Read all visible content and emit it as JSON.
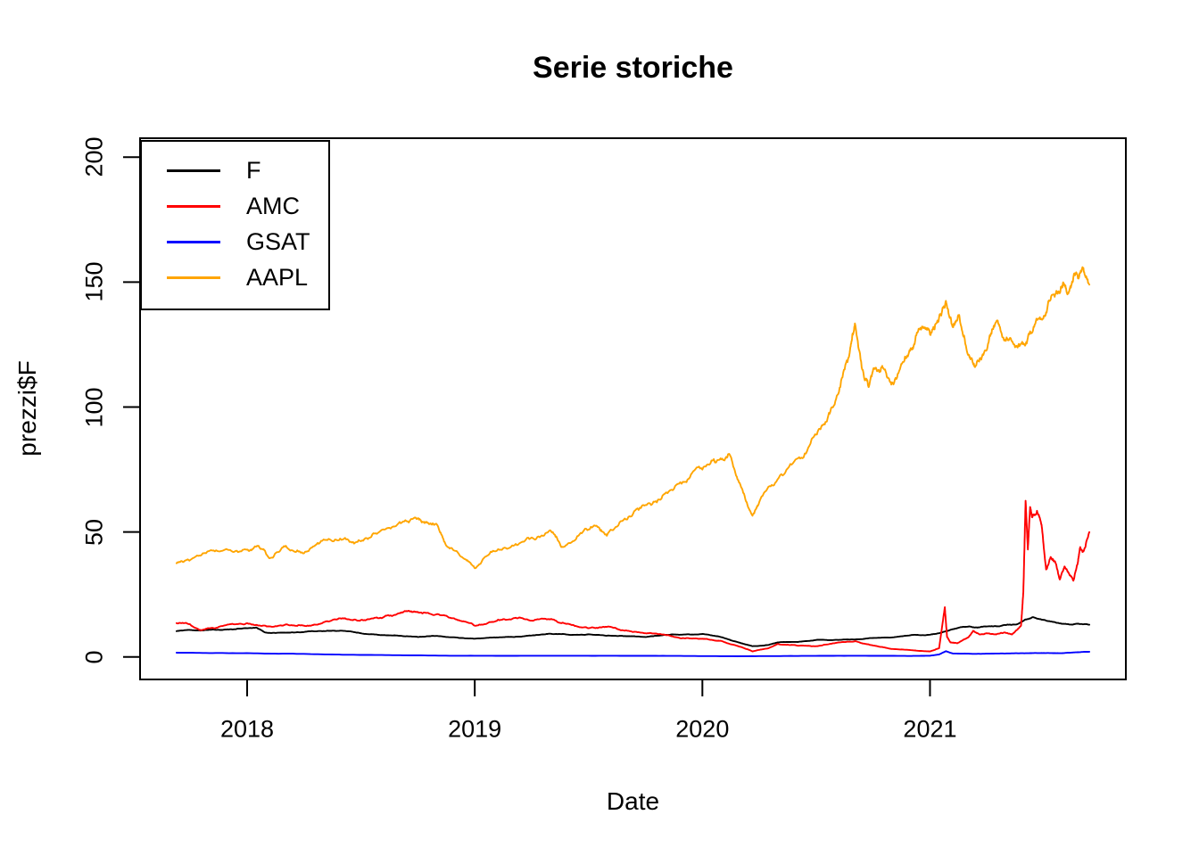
{
  "title": "Serie storiche",
  "x_axis": {
    "label": "Date",
    "tick_labels": [
      "2018",
      "2019",
      "2020",
      "2021"
    ],
    "ticks": [
      2018,
      2019,
      2020,
      2021
    ]
  },
  "y_axis": {
    "label": "prezzi$F",
    "tick_labels": [
      "0",
      "50",
      "100",
      "150",
      "200"
    ],
    "ticks": [
      0,
      50,
      100,
      150,
      200
    ]
  },
  "legend": {
    "position": "topleft",
    "entries": [
      {
        "label": "F",
        "color": "#000000"
      },
      {
        "label": "AMC",
        "color": "#FF0000"
      },
      {
        "label": "GSAT",
        "color": "#0000FF"
      },
      {
        "label": "AAPL",
        "color": "#FFA500"
      }
    ]
  },
  "chart_data": {
    "type": "line",
    "title": "Serie storiche",
    "xlabel": "Date",
    "ylabel": "prezzi$F",
    "x_unit": "decimal_year",
    "xlim": [
      2017.69,
      2021.7
    ],
    "ylim": [
      0,
      200
    ],
    "grid": false,
    "legend_position": "topleft",
    "series": [
      {
        "name": "F",
        "color": "#000000",
        "x": [
          2017.69,
          2017.75,
          2017.83,
          2017.92,
          2018.0,
          2018.04,
          2018.08,
          2018.17,
          2018.25,
          2018.33,
          2018.42,
          2018.5,
          2018.58,
          2018.67,
          2018.75,
          2018.83,
          2018.92,
          2019.0,
          2019.08,
          2019.17,
          2019.25,
          2019.33,
          2019.42,
          2019.5,
          2019.58,
          2019.67,
          2019.75,
          2019.83,
          2019.92,
          2020.0,
          2020.08,
          2020.17,
          2020.22,
          2020.29,
          2020.33,
          2020.42,
          2020.5,
          2020.58,
          2020.67,
          2020.75,
          2020.83,
          2020.92,
          2021.0,
          2021.04,
          2021.08,
          2021.13,
          2021.17,
          2021.21,
          2021.25,
          2021.29,
          2021.33,
          2021.38,
          2021.42,
          2021.45,
          2021.5,
          2021.54,
          2021.58,
          2021.63,
          2021.65,
          2021.7
        ],
        "y": [
          10.3,
          10.8,
          10.8,
          11.0,
          11.5,
          11.8,
          9.8,
          9.7,
          10.0,
          10.3,
          10.5,
          9.5,
          8.8,
          8.5,
          8.0,
          8.4,
          7.8,
          7.3,
          7.8,
          8.0,
          8.6,
          9.3,
          8.8,
          9.1,
          8.5,
          8.3,
          8.0,
          8.8,
          9.0,
          9.2,
          8.0,
          5.5,
          4.3,
          4.8,
          5.8,
          6.0,
          6.8,
          6.8,
          7.0,
          7.6,
          7.8,
          8.8,
          8.9,
          9.5,
          10.5,
          11.8,
          12.2,
          11.8,
          12.2,
          12.3,
          12.8,
          13.0,
          15.0,
          15.9,
          14.8,
          14.0,
          13.3,
          13.0,
          13.3,
          12.9
        ]
      },
      {
        "name": "AMC",
        "color": "#FF0000",
        "x": [
          2017.69,
          2017.75,
          2017.79,
          2017.83,
          2017.92,
          2018.0,
          2018.08,
          2018.17,
          2018.25,
          2018.33,
          2018.42,
          2018.5,
          2018.58,
          2018.67,
          2018.71,
          2018.75,
          2018.83,
          2018.92,
          2019.0,
          2019.08,
          2019.17,
          2019.25,
          2019.33,
          2019.42,
          2019.5,
          2019.58,
          2019.67,
          2019.75,
          2019.83,
          2019.92,
          2020.0,
          2020.08,
          2020.17,
          2020.22,
          2020.29,
          2020.33,
          2020.42,
          2020.5,
          2020.58,
          2020.67,
          2020.75,
          2020.83,
          2020.92,
          2021.0,
          2021.04,
          2021.065,
          2021.075,
          2021.09,
          2021.12,
          2021.17,
          2021.19,
          2021.22,
          2021.25,
          2021.29,
          2021.33,
          2021.36,
          2021.4,
          2021.41,
          2021.42,
          2021.43,
          2021.44,
          2021.45,
          2021.47,
          2021.49,
          2021.51,
          2021.53,
          2021.55,
          2021.57,
          2021.59,
          2021.61,
          2021.63,
          2021.65,
          2021.66,
          2021.67,
          2021.7
        ],
        "y": [
          13.5,
          13.0,
          10.8,
          11.5,
          13.0,
          13.5,
          12.5,
          13.0,
          12.5,
          13.5,
          15.5,
          14.8,
          15.5,
          17.5,
          18.5,
          18.0,
          17.0,
          15.0,
          12.5,
          14.0,
          15.5,
          14.5,
          15.0,
          13.0,
          11.5,
          12.0,
          10.5,
          9.5,
          9.0,
          7.5,
          7.3,
          6.5,
          4.0,
          2.2,
          3.5,
          5.2,
          4.5,
          4.3,
          5.5,
          6.3,
          4.6,
          3.2,
          2.7,
          2.2,
          3.5,
          19.9,
          8.0,
          5.8,
          5.5,
          8.0,
          10.5,
          9.0,
          9.5,
          9.0,
          9.8,
          9.0,
          12.5,
          26.0,
          62.5,
          43.0,
          60.0,
          56.0,
          58.5,
          53.0,
          35.0,
          40.0,
          38.0,
          31.0,
          36.0,
          33.5,
          30.5,
          38.0,
          44.0,
          42.0,
          50.0
        ]
      },
      {
        "name": "GSAT",
        "color": "#0000FF",
        "x": [
          2017.69,
          2017.92,
          2018.17,
          2018.42,
          2018.67,
          2018.92,
          2019.17,
          2019.42,
          2019.67,
          2019.92,
          2020.17,
          2020.42,
          2020.67,
          2020.92,
          2021.0,
          2021.04,
          2021.07,
          2021.1,
          2021.17,
          2021.25,
          2021.33,
          2021.42,
          2021.5,
          2021.58,
          2021.63,
          2021.7
        ],
        "y": [
          1.7,
          1.5,
          1.3,
          0.9,
          0.7,
          0.5,
          0.45,
          0.5,
          0.45,
          0.4,
          0.3,
          0.4,
          0.5,
          0.4,
          0.5,
          1.0,
          2.3,
          1.4,
          1.3,
          1.3,
          1.4,
          1.5,
          1.6,
          1.5,
          1.8,
          2.1
        ]
      },
      {
        "name": "AAPL",
        "color": "#FFA500",
        "x": [
          2017.69,
          2017.75,
          2017.83,
          2017.92,
          2018.0,
          2018.05,
          2018.1,
          2018.17,
          2018.25,
          2018.33,
          2018.42,
          2018.5,
          2018.58,
          2018.67,
          2018.75,
          2018.79,
          2018.84,
          2018.88,
          2018.96,
          2019.0,
          2019.08,
          2019.17,
          2019.25,
          2019.33,
          2019.38,
          2019.46,
          2019.54,
          2019.58,
          2019.67,
          2019.75,
          2019.83,
          2019.92,
          2020.0,
          2020.08,
          2020.12,
          2020.17,
          2020.22,
          2020.25,
          2020.33,
          2020.42,
          2020.5,
          2020.55,
          2020.6,
          2020.65,
          2020.67,
          2020.71,
          2020.73,
          2020.75,
          2020.79,
          2020.83,
          2020.88,
          2020.92,
          2020.96,
          2021.0,
          2021.04,
          2021.07,
          2021.1,
          2021.13,
          2021.17,
          2021.2,
          2021.25,
          2021.29,
          2021.33,
          2021.38,
          2021.42,
          2021.46,
          2021.5,
          2021.54,
          2021.58,
          2021.6,
          2021.63,
          2021.67,
          2021.7
        ],
        "y": [
          37.5,
          38.8,
          42.3,
          42.8,
          43.0,
          44.5,
          39.5,
          44.5,
          41.5,
          46.5,
          47.0,
          46.3,
          50.0,
          54.0,
          55.5,
          54.0,
          52.0,
          44.0,
          39.0,
          35.5,
          42.5,
          44.5,
          47.8,
          50.7,
          44.0,
          49.0,
          52.0,
          48.5,
          55.0,
          60.8,
          65.0,
          70.0,
          75.0,
          79.5,
          81.0,
          68.0,
          56.5,
          62.0,
          71.0,
          79.5,
          89.0,
          95.5,
          106.0,
          124.0,
          133.5,
          112.0,
          108.0,
          115.0,
          116.5,
          109.0,
          118.0,
          123.0,
          131.0,
          129.0,
          136.0,
          142.5,
          132.0,
          136.0,
          121.0,
          116.5,
          123.0,
          134.0,
          127.0,
          124.5,
          125.0,
          133.0,
          136.5,
          145.0,
          148.5,
          146.0,
          152.0,
          156.0,
          149.0
        ]
      }
    ]
  }
}
